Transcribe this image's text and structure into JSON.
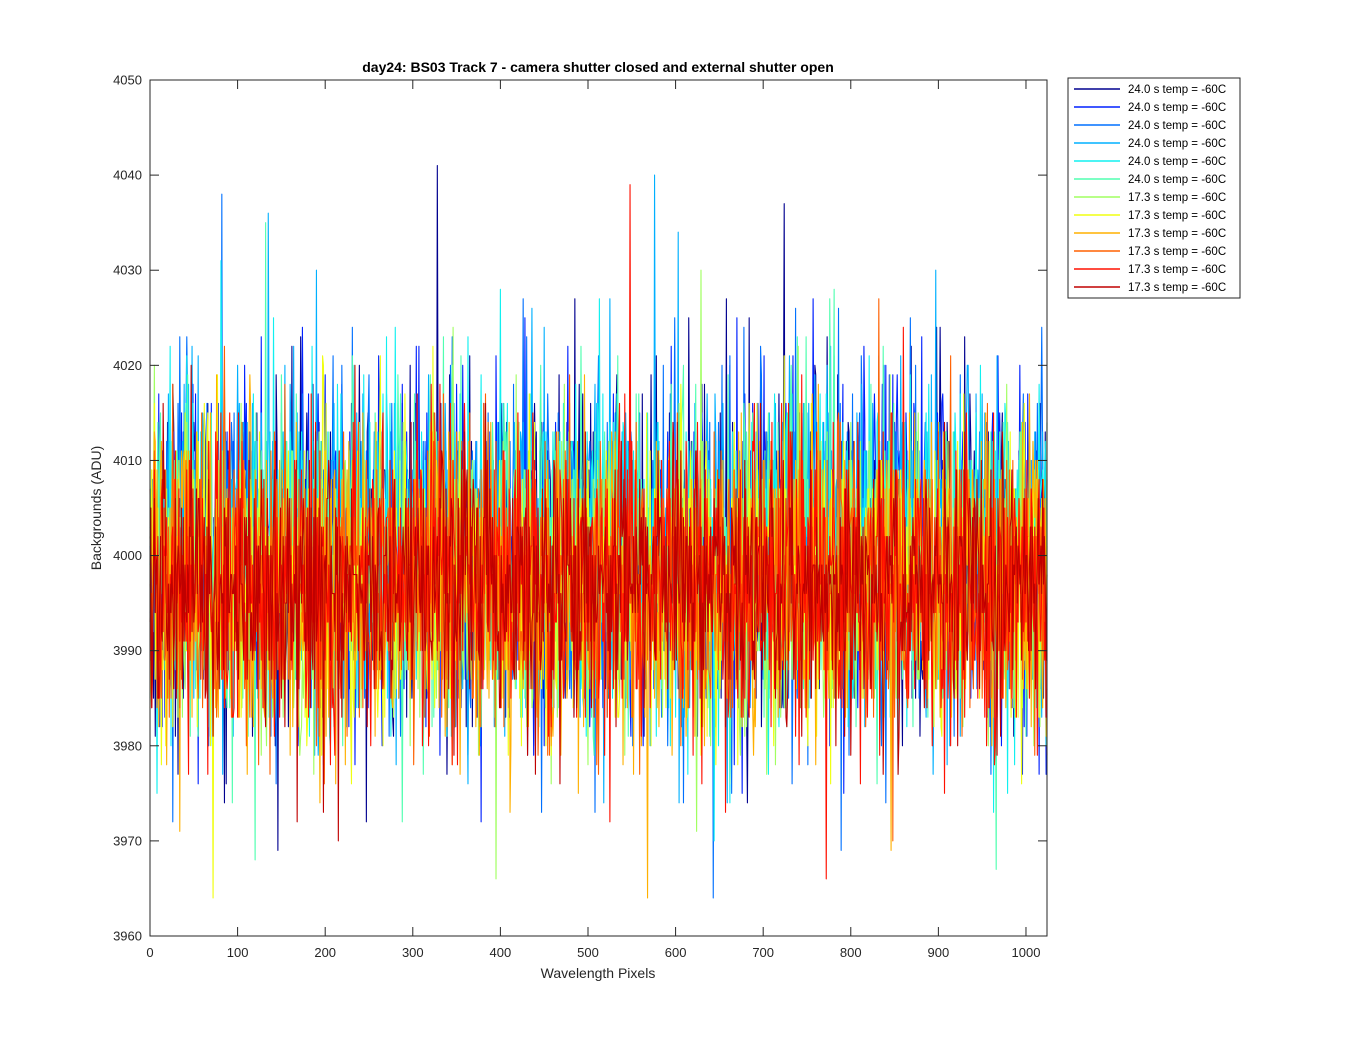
{
  "chart_data": {
    "type": "line",
    "title": "day24: BS03  Track 7 - camera shutter closed and external shutter open",
    "xlabel": "Wavelength Pixels",
    "ylabel": "Backgrounds (ADU)",
    "xlim": [
      0,
      1024
    ],
    "ylim": [
      3960,
      4050
    ],
    "xticks": [
      0,
      100,
      200,
      300,
      400,
      500,
      600,
      700,
      800,
      900,
      1000
    ],
    "yticks": [
      3960,
      3970,
      3980,
      3990,
      4000,
      4010,
      4020,
      4030,
      4040,
      4050
    ],
    "grid": false,
    "legend_position": "outside-top-right",
    "series": [
      {
        "name": "24.0 s temp = -60C",
        "color": "#00008F",
        "mean": 4000,
        "std": 9,
        "x_start": 0,
        "x_end": 1024
      },
      {
        "name": "24.0 s temp = -60C",
        "color": "#0020FF",
        "mean": 4000,
        "std": 9,
        "x_start": 0,
        "x_end": 1024
      },
      {
        "name": "24.0 s temp = -60C",
        "color": "#0070FF",
        "mean": 4000,
        "std": 9,
        "x_start": 0,
        "x_end": 1024
      },
      {
        "name": "24.0 s temp = -60C",
        "color": "#00B0FF",
        "mean": 4000,
        "std": 9,
        "x_start": 0,
        "x_end": 1024
      },
      {
        "name": "24.0 s temp = -60C",
        "color": "#10F0F0",
        "mean": 4000,
        "std": 9,
        "x_start": 0,
        "x_end": 1024
      },
      {
        "name": "24.0 s temp = -60C",
        "color": "#50FFB0",
        "mean": 4000,
        "std": 9,
        "x_start": 0,
        "x_end": 1024
      },
      {
        "name": "17.3 s temp = -60C",
        "color": "#A0FF60",
        "mean": 3997,
        "std": 8,
        "x_start": 0,
        "x_end": 1024
      },
      {
        "name": "17.3 s temp = -60C",
        "color": "#F0FF10",
        "mean": 3997,
        "std": 8,
        "x_start": 0,
        "x_end": 1024
      },
      {
        "name": "17.3 s temp = -60C",
        "color": "#FFB000",
        "mean": 3997,
        "std": 8,
        "x_start": 0,
        "x_end": 1024
      },
      {
        "name": "17.3 s temp = -60C",
        "color": "#FF6000",
        "mean": 3997,
        "std": 8,
        "x_start": 0,
        "x_end": 1024
      },
      {
        "name": "17.3 s temp = -60C",
        "color": "#FF1000",
        "mean": 3997,
        "std": 8,
        "x_start": 0,
        "x_end": 1024
      },
      {
        "name": "17.3 s temp = -60C",
        "color": "#C00000",
        "mean": 3997,
        "std": 7,
        "x_start": 0,
        "x_end": 1024
      }
    ],
    "peaks": [
      {
        "series": 0,
        "x": 328,
        "y": 4041
      },
      {
        "series": 10,
        "x": 548,
        "y": 4039
      },
      {
        "series": 3,
        "x": 576,
        "y": 4040
      },
      {
        "series": 0,
        "x": 724,
        "y": 4037
      },
      {
        "series": 3,
        "x": 135,
        "y": 4036
      },
      {
        "series": 7,
        "x": 72,
        "y": 3964
      },
      {
        "series": 10,
        "x": 772,
        "y": 3966
      }
    ]
  }
}
